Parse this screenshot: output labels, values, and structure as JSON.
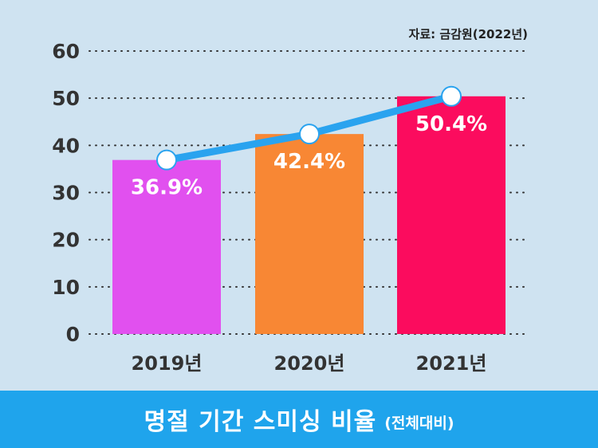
{
  "source": "자료: 금감원(2022년)",
  "footer": {
    "title": "명절 기간 스미싱 비율",
    "subtitle": "(전체대비)"
  },
  "colors": {
    "background": "#cfe3f1",
    "footer": "#1fa4ec",
    "line": "#2aa3ef",
    "bar_2019": "#e150ef",
    "bar_2020": "#f88734",
    "bar_2021": "#fb0c5e"
  },
  "chart_data": {
    "type": "bar",
    "title": "",
    "xlabel": "",
    "ylabel": "",
    "ylim": [
      0,
      60
    ],
    "yticks": [
      0,
      10,
      20,
      30,
      40,
      50,
      60
    ],
    "grid": true,
    "categories": [
      "2019년",
      "2020년",
      "2021년"
    ],
    "values": [
      36.9,
      42.4,
      50.4
    ],
    "data_labels": [
      "36.9%",
      "42.4%",
      "50.4%"
    ],
    "bar_colors": [
      "#e150ef",
      "#f88734",
      "#fb0c5e"
    ],
    "overlay_line": {
      "type": "line",
      "values": [
        36.9,
        42.4,
        50.4
      ],
      "color": "#2aa3ef"
    }
  }
}
